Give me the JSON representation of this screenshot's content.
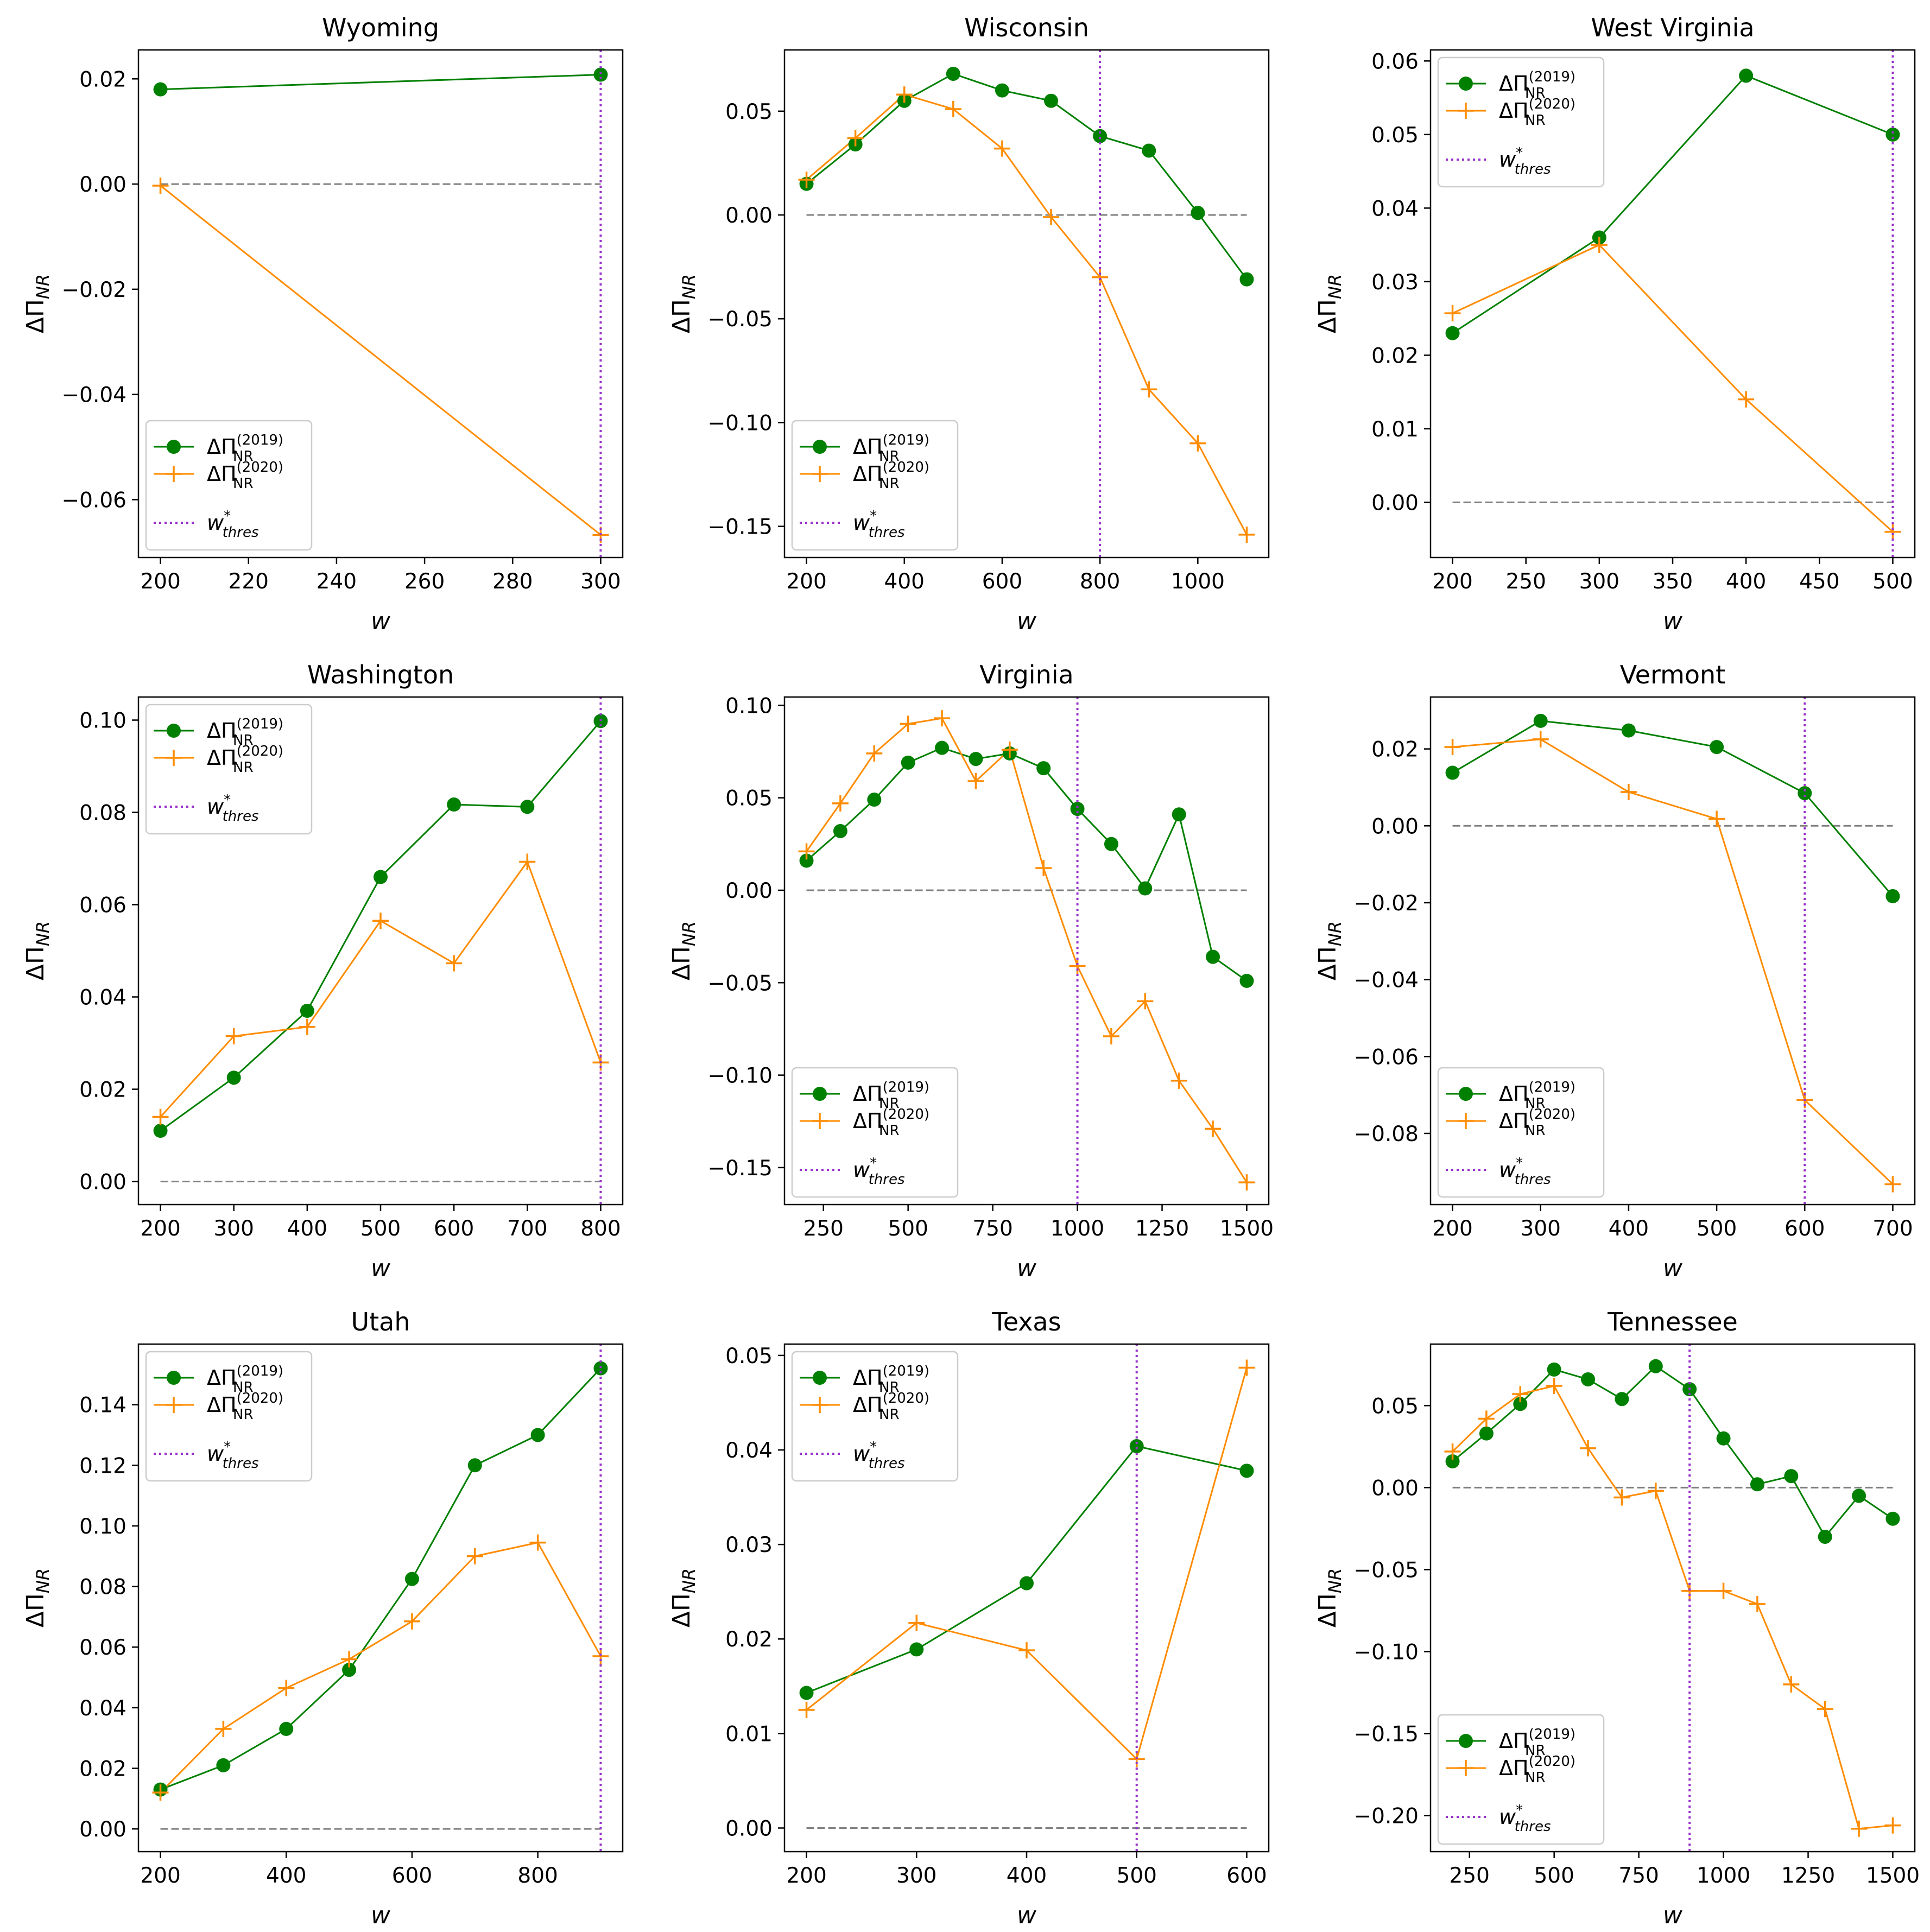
{
  "colors": {
    "s2019": "#008000",
    "s2020": "#ff8c00",
    "thres": "#9932cc",
    "zero": "#808080"
  },
  "legend_labels": {
    "s2019": {
      "base": "ΔΠ",
      "sup": "(2019)",
      "sub": "NR"
    },
    "s2020": {
      "base": "ΔΠ",
      "sup": "(2020)",
      "sub": "NR"
    },
    "thres": {
      "base": "w",
      "sup": "*",
      "sub": "thres"
    }
  },
  "chart_data": [
    {
      "type": "line",
      "title": "Wyoming",
      "xlabel": "w",
      "ylabel": "ΔΠNR",
      "xlim": [
        195,
        305
      ],
      "ylim": [
        -0.071,
        0.0255
      ],
      "xticks": [
        200,
        220,
        240,
        260,
        280,
        300
      ],
      "yticks": [
        -0.06,
        -0.04,
        -0.02,
        0.0,
        0.02
      ],
      "ytick_labels": [
        "−0.06",
        "−0.04",
        "−0.02",
        "0.00",
        "0.02"
      ],
      "legend": "lower-left",
      "threshold": 300,
      "zero_line": [
        200,
        300
      ],
      "series": [
        {
          "name": "2019",
          "x": [
            200,
            300
          ],
          "y": [
            0.018,
            0.0208
          ]
        },
        {
          "name": "2020",
          "x": [
            200,
            300
          ],
          "y": [
            -0.0003,
            -0.0667
          ]
        }
      ]
    },
    {
      "type": "line",
      "title": "Wisconsin",
      "xlabel": "w",
      "ylabel": "ΔΠNR",
      "xlim": [
        155,
        1145
      ],
      "ylim": [
        -0.165,
        0.0795
      ],
      "xticks": [
        200,
        400,
        600,
        800,
        1000
      ],
      "yticks": [
        -0.15,
        -0.1,
        -0.05,
        0.0,
        0.05
      ],
      "ytick_labels": [
        "−0.15",
        "−0.10",
        "−0.05",
        "0.00",
        "0.05"
      ],
      "legend": "lower-left",
      "threshold": 800,
      "zero_line": [
        200,
        1100
      ],
      "series": [
        {
          "name": "2019",
          "x": [
            200,
            300,
            400,
            500,
            600,
            700,
            800,
            900,
            1000,
            1100
          ],
          "y": [
            0.015,
            0.034,
            0.055,
            0.068,
            0.06,
            0.055,
            0.038,
            0.031,
            0.001,
            -0.031
          ]
        },
        {
          "name": "2020",
          "x": [
            200,
            300,
            400,
            500,
            600,
            700,
            800,
            900,
            1000,
            1100
          ],
          "y": [
            0.017,
            0.037,
            0.058,
            0.051,
            0.032,
            -0.001,
            -0.03,
            -0.084,
            -0.11,
            -0.154
          ]
        }
      ]
    },
    {
      "type": "line",
      "title": "West Virginia",
      "xlabel": "w",
      "ylabel": "ΔΠNR",
      "xlim": [
        185,
        515
      ],
      "ylim": [
        -0.0075,
        0.0615
      ],
      "xticks": [
        200,
        250,
        300,
        350,
        400,
        450,
        500
      ],
      "yticks": [
        0.0,
        0.01,
        0.02,
        0.03,
        0.04,
        0.05,
        0.06
      ],
      "ytick_labels": [
        "0.00",
        "0.01",
        "0.02",
        "0.03",
        "0.04",
        "0.05",
        "0.06"
      ],
      "legend": "upper-left",
      "threshold": 500,
      "zero_line": [
        200,
        500
      ],
      "series": [
        {
          "name": "2019",
          "x": [
            200,
            300,
            400,
            500
          ],
          "y": [
            0.023,
            0.036,
            0.058,
            0.05
          ]
        },
        {
          "name": "2020",
          "x": [
            200,
            300,
            400,
            500
          ],
          "y": [
            0.0257,
            0.035,
            0.014,
            -0.004
          ]
        }
      ]
    },
    {
      "type": "line",
      "title": "Washington",
      "xlabel": "w",
      "ylabel": "ΔΠNR",
      "xlim": [
        170,
        830
      ],
      "ylim": [
        -0.005,
        0.105
      ],
      "xticks": [
        200,
        300,
        400,
        500,
        600,
        700,
        800
      ],
      "yticks": [
        0.0,
        0.02,
        0.04,
        0.06,
        0.08,
        0.1
      ],
      "ytick_labels": [
        "0.00",
        "0.02",
        "0.04",
        "0.06",
        "0.08",
        "0.10"
      ],
      "legend": "upper-left",
      "threshold": 800,
      "zero_line": [
        200,
        800
      ],
      "series": [
        {
          "name": "2019",
          "x": [
            200,
            300,
            400,
            500,
            600,
            700,
            800
          ],
          "y": [
            0.011,
            0.0225,
            0.037,
            0.066,
            0.0817,
            0.0812,
            0.0998
          ]
        },
        {
          "name": "2020",
          "x": [
            200,
            300,
            400,
            500,
            600,
            700,
            800
          ],
          "y": [
            0.014,
            0.0315,
            0.0335,
            0.0565,
            0.0473,
            0.0693,
            0.0258
          ]
        }
      ]
    },
    {
      "type": "line",
      "title": "Virginia",
      "xlabel": "w",
      "ylabel": "ΔΠNR",
      "xlim": [
        135,
        1565
      ],
      "ylim": [
        -0.17,
        0.1045
      ],
      "xticks": [
        250,
        500,
        750,
        1000,
        1250,
        1500
      ],
      "yticks": [
        -0.15,
        -0.1,
        -0.05,
        0.0,
        0.05,
        0.1
      ],
      "ytick_labels": [
        "−0.15",
        "−0.10",
        "−0.05",
        "0.00",
        "0.05",
        "0.10"
      ],
      "legend": "lower-left",
      "threshold": 1000,
      "zero_line": [
        200,
        1500
      ],
      "series": [
        {
          "name": "2019",
          "x": [
            200,
            300,
            400,
            500,
            600,
            700,
            800,
            900,
            1000,
            1100,
            1200,
            1300,
            1400,
            1500
          ],
          "y": [
            0.016,
            0.032,
            0.049,
            0.069,
            0.077,
            0.071,
            0.074,
            0.066,
            0.044,
            0.025,
            0.001,
            0.041,
            -0.036,
            -0.049
          ]
        },
        {
          "name": "2020",
          "x": [
            200,
            300,
            400,
            500,
            600,
            700,
            800,
            900,
            1000,
            1100,
            1200,
            1300,
            1400,
            1500
          ],
          "y": [
            0.021,
            0.047,
            0.074,
            0.09,
            0.093,
            0.059,
            0.076,
            0.012,
            -0.041,
            -0.079,
            -0.06,
            -0.103,
            -0.129,
            -0.158
          ]
        }
      ]
    },
    {
      "type": "line",
      "title": "Vermont",
      "xlabel": "w",
      "ylabel": "ΔΠNR",
      "xlim": [
        175,
        725
      ],
      "ylim": [
        -0.0985,
        0.0335
      ],
      "xticks": [
        200,
        300,
        400,
        500,
        600,
        700
      ],
      "yticks": [
        -0.08,
        -0.06,
        -0.04,
        -0.02,
        0.0,
        0.02
      ],
      "ytick_labels": [
        "−0.08",
        "−0.06",
        "−0.04",
        "−0.02",
        "0.00",
        "0.02"
      ],
      "legend": "lower-left",
      "threshold": 600,
      "zero_line": [
        200,
        700
      ],
      "series": [
        {
          "name": "2019",
          "x": [
            200,
            300,
            400,
            500,
            600,
            700
          ],
          "y": [
            0.0138,
            0.0273,
            0.0248,
            0.0205,
            0.0085,
            -0.0183
          ]
        },
        {
          "name": "2020",
          "x": [
            200,
            300,
            400,
            500,
            600,
            700
          ],
          "y": [
            0.0205,
            0.0225,
            0.0088,
            0.0018,
            -0.0713,
            -0.0932
          ]
        }
      ]
    },
    {
      "type": "line",
      "title": "Utah",
      "xlabel": "w",
      "ylabel": "ΔΠNR",
      "xlim": [
        165,
        935
      ],
      "ylim": [
        -0.0075,
        0.16
      ],
      "xticks": [
        200,
        400,
        600,
        800
      ],
      "yticks": [
        0.0,
        0.02,
        0.04,
        0.06,
        0.08,
        0.1,
        0.12,
        0.14
      ],
      "ytick_labels": [
        "0.00",
        "0.02",
        "0.04",
        "0.06",
        "0.08",
        "0.10",
        "0.12",
        "0.14"
      ],
      "legend": "upper-left",
      "threshold": 900,
      "zero_line": [
        200,
        900
      ],
      "series": [
        {
          "name": "2019",
          "x": [
            200,
            300,
            400,
            500,
            600,
            700,
            800,
            900
          ],
          "y": [
            0.013,
            0.021,
            0.033,
            0.0525,
            0.0825,
            0.12,
            0.13,
            0.152
          ]
        },
        {
          "name": "2020",
          "x": [
            200,
            300,
            400,
            500,
            600,
            700,
            800,
            900
          ],
          "y": [
            0.012,
            0.033,
            0.0465,
            0.056,
            0.0685,
            0.09,
            0.0945,
            0.057
          ]
        }
      ]
    },
    {
      "type": "line",
      "title": "Texas",
      "xlabel": "w",
      "ylabel": "ΔΠNR",
      "xlim": [
        180,
        620
      ],
      "ylim": [
        -0.0025,
        0.0512
      ],
      "xticks": [
        200,
        300,
        400,
        500,
        600
      ],
      "yticks": [
        0.0,
        0.01,
        0.02,
        0.03,
        0.04,
        0.05
      ],
      "ytick_labels": [
        "0.00",
        "0.01",
        "0.02",
        "0.03",
        "0.04",
        "0.05"
      ],
      "legend": "upper-left",
      "threshold": 500,
      "zero_line": [
        200,
        600
      ],
      "series": [
        {
          "name": "2019",
          "x": [
            200,
            300,
            400,
            500,
            600
          ],
          "y": [
            0.0143,
            0.0189,
            0.0259,
            0.0404,
            0.0378
          ]
        },
        {
          "name": "2020",
          "x": [
            200,
            300,
            400,
            500,
            600
          ],
          "y": [
            0.0125,
            0.0217,
            0.0188,
            0.0073,
            0.0487
          ]
        }
      ]
    },
    {
      "type": "line",
      "title": "Tennessee",
      "xlabel": "w",
      "ylabel": "ΔΠNR",
      "xlim": [
        135,
        1565
      ],
      "ylim": [
        -0.222,
        0.0875
      ],
      "xticks": [
        250,
        500,
        750,
        1000,
        1250,
        1500
      ],
      "yticks": [
        -0.2,
        -0.15,
        -0.1,
        -0.05,
        0.0,
        0.05
      ],
      "ytick_labels": [
        "−0.20",
        "−0.15",
        "−0.10",
        "−0.05",
        "0.00",
        "0.05"
      ],
      "legend": "lower-left",
      "threshold": 900,
      "zero_line": [
        200,
        1500
      ],
      "series": [
        {
          "name": "2019",
          "x": [
            200,
            300,
            400,
            500,
            600,
            700,
            800,
            900,
            1000,
            1100,
            1200,
            1300,
            1400,
            1500
          ],
          "y": [
            0.016,
            0.033,
            0.051,
            0.072,
            0.066,
            0.054,
            0.074,
            0.06,
            0.03,
            0.002,
            0.007,
            -0.03,
            -0.005,
            -0.019
          ]
        },
        {
          "name": "2020",
          "x": [
            200,
            300,
            400,
            500,
            600,
            700,
            800,
            900,
            1000,
            1100,
            1200,
            1300,
            1400,
            1500
          ],
          "y": [
            0.022,
            0.042,
            0.057,
            0.062,
            0.024,
            -0.006,
            -0.002,
            -0.063,
            -0.063,
            -0.071,
            -0.12,
            -0.135,
            -0.208,
            -0.206
          ]
        }
      ]
    }
  ]
}
